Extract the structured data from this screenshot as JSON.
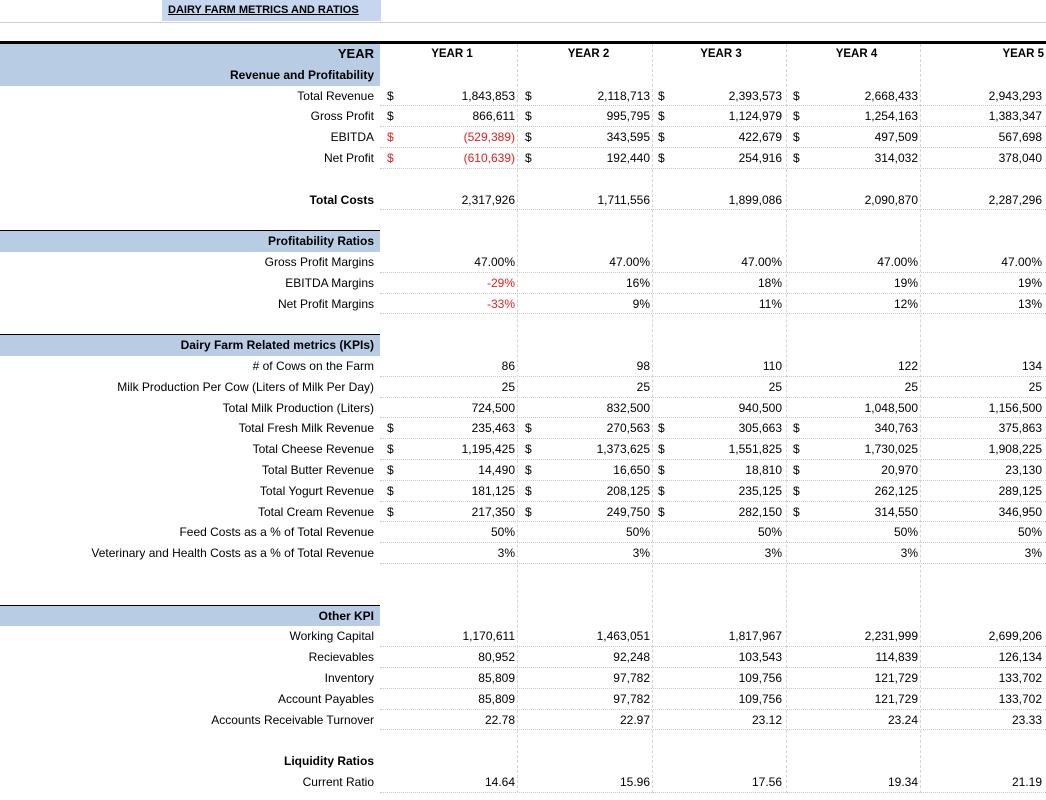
{
  "title": "DAIRY FARM METRICS AND RATIOS",
  "header": {
    "label": "YEAR",
    "years": [
      "YEAR 1",
      "YEAR 2",
      "YEAR 3",
      "YEAR 4",
      "YEAR 5"
    ]
  },
  "sections": [
    {
      "title": "Revenue and Profitability",
      "rows": [
        {
          "label": "Total Revenue",
          "dollar": [
            true,
            true,
            true,
            true,
            false
          ],
          "dollar_label": true,
          "values": [
            "1,843,853",
            "2,118,713",
            "2,393,573",
            "2,668,433",
            "2,943,293"
          ]
        },
        {
          "label": "Gross Profit",
          "dollar": [
            true,
            true,
            true,
            true,
            false
          ],
          "dollar_label": true,
          "values": [
            "866,611",
            "995,795",
            "1,124,979",
            "1,254,163",
            "1,383,347"
          ]
        },
        {
          "label": "EBITDA",
          "dollar": [
            true,
            true,
            true,
            true,
            false
          ],
          "dollar_label": true,
          "dollar_label_neg": true,
          "values": [
            "(529,389)",
            "343,595",
            "422,679",
            "497,509",
            "567,698"
          ],
          "neg": [
            true,
            false,
            false,
            false,
            false
          ]
        },
        {
          "label": "Net Profit",
          "dollar": [
            true,
            true,
            true,
            true,
            false
          ],
          "dollar_label": true,
          "dollar_label_neg": true,
          "values": [
            "(610,639)",
            "192,440",
            "254,916",
            "314,032",
            "378,040"
          ],
          "neg": [
            true,
            false,
            false,
            false,
            false
          ]
        },
        {
          "spacer": true
        },
        {
          "label": "Total Costs",
          "bold": true,
          "values": [
            "2,317,926",
            "1,711,556",
            "1,899,086",
            "2,090,870",
            "2,287,296"
          ]
        },
        {
          "spacer": true
        }
      ]
    },
    {
      "title": "Profitability Ratios",
      "rows": [
        {
          "label": "Gross Profit Margins",
          "values": [
            "47.00%",
            "47.00%",
            "47.00%",
            "47.00%",
            "47.00%"
          ]
        },
        {
          "label": "EBITDA Margins",
          "values": [
            "-29%",
            "16%",
            "18%",
            "19%",
            "19%"
          ],
          "neg": [
            true,
            false,
            false,
            false,
            false
          ]
        },
        {
          "label": "Net Profit Margins",
          "values": [
            "-33%",
            "9%",
            "11%",
            "12%",
            "13%"
          ],
          "neg": [
            true,
            false,
            false,
            false,
            false
          ]
        },
        {
          "spacer": true
        }
      ]
    },
    {
      "title": "Dairy Farm Related metrics (KPIs)",
      "rows": [
        {
          "label": "# of Cows on the Farm",
          "values": [
            "86",
            "98",
            "110",
            "122",
            "134"
          ]
        },
        {
          "label": "Milk Production Per Cow (Liters of Milk Per Day)",
          "values": [
            "25",
            "25",
            "25",
            "25",
            "25"
          ]
        },
        {
          "label": "Total Milk Production (Liters)",
          "values": [
            "724,500",
            "832,500",
            "940,500",
            "1,048,500",
            "1,156,500"
          ]
        },
        {
          "label": "Total Fresh Milk Revenue",
          "dollar": [
            true,
            true,
            true,
            true,
            false
          ],
          "dollar_label": true,
          "values": [
            "235,463",
            "270,563",
            "305,663",
            "340,763",
            "375,863"
          ]
        },
        {
          "label": "Total Cheese Revenue",
          "dollar": [
            true,
            true,
            true,
            true,
            false
          ],
          "dollar_label": true,
          "values": [
            "1,195,425",
            "1,373,625",
            "1,551,825",
            "1,730,025",
            "1,908,225"
          ]
        },
        {
          "label": "Total Butter Revenue",
          "dollar": [
            true,
            true,
            true,
            true,
            false
          ],
          "dollar_label": true,
          "values": [
            "14,490",
            "16,650",
            "18,810",
            "20,970",
            "23,130"
          ]
        },
        {
          "label": "Total Yogurt Revenue",
          "dollar": [
            true,
            true,
            true,
            true,
            false
          ],
          "dollar_label": true,
          "values": [
            "181,125",
            "208,125",
            "235,125",
            "262,125",
            "289,125"
          ]
        },
        {
          "label": "Total Cream Revenue",
          "dollar": [
            true,
            true,
            true,
            true,
            false
          ],
          "dollar_label": true,
          "values": [
            "217,350",
            "249,750",
            "282,150",
            "314,550",
            "346,950"
          ]
        },
        {
          "label": "Feed Costs as a % of Total Revenue",
          "values": [
            "50%",
            "50%",
            "50%",
            "50%",
            "50%"
          ]
        },
        {
          "label": "Veterinary and Health Costs as a % of Total Revenue",
          "values": [
            "3%",
            "3%",
            "3%",
            "3%",
            "3%"
          ]
        },
        {
          "spacer": true
        },
        {
          "spacer": true
        }
      ]
    },
    {
      "title": "Other KPI",
      "rows": [
        {
          "label": "Working Capital",
          "values": [
            "1,170,611",
            "1,463,051",
            "1,817,967",
            "2,231,999",
            "2,699,206"
          ]
        },
        {
          "label": "Recievables",
          "values": [
            "80,952",
            "92,248",
            "103,543",
            "114,839",
            "126,134"
          ]
        },
        {
          "label": "Inventory",
          "values": [
            "85,809",
            "97,782",
            "109,756",
            "121,729",
            "133,702"
          ]
        },
        {
          "label": "Account Payables",
          "values": [
            "85,809",
            "97,782",
            "109,756",
            "121,729",
            "133,702"
          ]
        },
        {
          "label": "Accounts Receivable Turnover",
          "values": [
            "22.78",
            "22.97",
            "23.12",
            "23.24",
            "23.33"
          ]
        },
        {
          "spacer": true
        }
      ]
    },
    {
      "title": "Liquidity Ratios",
      "plain": true,
      "rows": [
        {
          "label": "Current Ratio",
          "values": [
            "14.64",
            "15.96",
            "17.56",
            "19.34",
            "21.19"
          ]
        }
      ]
    }
  ],
  "dollar_sign": "$"
}
